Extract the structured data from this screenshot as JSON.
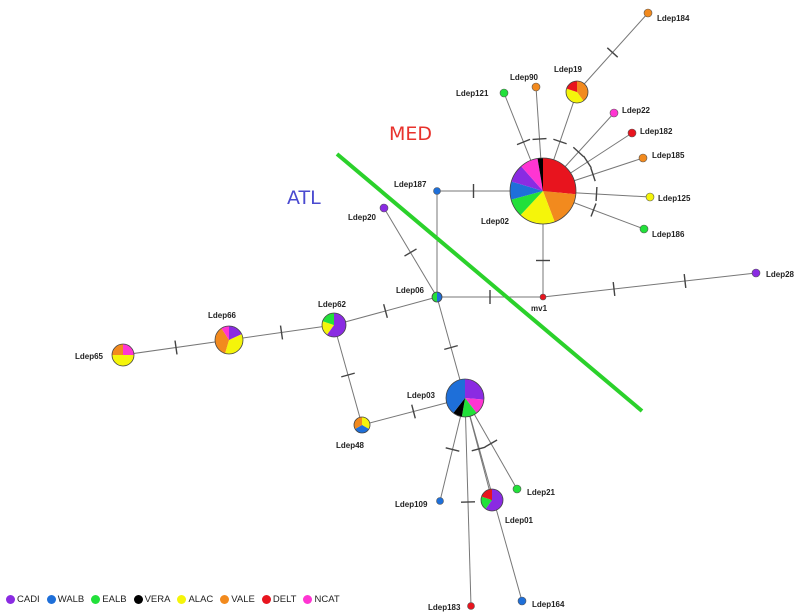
{
  "regions": {
    "med": {
      "label": "MED",
      "color": "#e8322c"
    },
    "atl": {
      "label": "ATL",
      "color": "#4a4ad0"
    }
  },
  "separator_color": "#2bd12b",
  "legend": [
    {
      "label": "CADI",
      "color": "#8a2be2"
    },
    {
      "label": "WALB",
      "color": "#1e6fd9"
    },
    {
      "label": "EALB",
      "color": "#22e03a"
    },
    {
      "label": "VERA",
      "color": "#000000"
    },
    {
      "label": "ALAC",
      "color": "#f5f50a"
    },
    {
      "label": "VALE",
      "color": "#f28a1e"
    },
    {
      "label": "DELT",
      "color": "#e8141e"
    },
    {
      "label": "NCAT",
      "color": "#ff35d2"
    }
  ],
  "haplotypes": [
    {
      "id": "ldep02",
      "label": "Ldep02",
      "composition": {
        "DELT": 3,
        "VALE": 2,
        "ALAC": 2,
        "EALB": 1,
        "WALB": 1,
        "CADI": 1,
        "NCAT": 1,
        "VERA": 0.3
      }
    },
    {
      "id": "ldep03",
      "label": "Ldep03",
      "composition": {
        "CADI": 2,
        "NCAT": 1,
        "EALB": 1,
        "VERA": 0.6,
        "WALB": 3
      }
    },
    {
      "id": "ldep06",
      "label": "Ldep06",
      "composition": {
        "WALB": 1,
        "EALB": 1
      }
    },
    {
      "id": "ldep62",
      "label": "Ldep62",
      "composition": {
        "CADI": 3,
        "ALAC": 1,
        "EALB": 1
      }
    },
    {
      "id": "ldep66",
      "label": "Ldep66",
      "composition": {
        "CADI": 1,
        "ALAC": 2,
        "VALE": 2,
        "NCAT": 0.5
      }
    },
    {
      "id": "ldep65",
      "label": "Ldep65",
      "composition": {
        "NCAT": 1,
        "ALAC": 2,
        "VALE": 1
      }
    },
    {
      "id": "ldep48",
      "label": "Ldep48",
      "composition": {
        "ALAC": 1,
        "WALB": 1,
        "VALE": 1
      }
    },
    {
      "id": "ldep19",
      "label": "Ldep19",
      "composition": {
        "VALE": 2,
        "ALAC": 2,
        "DELT": 1
      }
    },
    {
      "id": "ldep01",
      "label": "Ldep01",
      "composition": {
        "CADI": 3,
        "EALB": 1,
        "DELT": 1
      }
    },
    {
      "id": "ldep184",
      "label": "Ldep184",
      "composition": {
        "VALE": 1
      }
    },
    {
      "id": "ldep90",
      "label": "Ldep90",
      "composition": {
        "VALE": 1
      }
    },
    {
      "id": "ldep121",
      "label": "Ldep121",
      "composition": {
        "EALB": 1
      }
    },
    {
      "id": "ldep22",
      "label": "Ldep22",
      "composition": {
        "NCAT": 1
      }
    },
    {
      "id": "ldep182",
      "label": "Ldep182",
      "composition": {
        "DELT": 1
      }
    },
    {
      "id": "ldep185",
      "label": "Ldep185",
      "composition": {
        "VALE": 1
      }
    },
    {
      "id": "ldep125",
      "label": "Ldep125",
      "composition": {
        "ALAC": 1
      }
    },
    {
      "id": "ldep186",
      "label": "Ldep186",
      "composition": {
        "EALB": 1
      }
    },
    {
      "id": "ldep187",
      "label": "Ldep187",
      "composition": {
        "WALB": 1
      }
    },
    {
      "id": "ldep20",
      "label": "Ldep20",
      "composition": {
        "CADI": 1
      }
    },
    {
      "id": "ldep28",
      "label": "Ldep28",
      "composition": {
        "CADI": 1
      }
    },
    {
      "id": "mv1",
      "label": "mv1",
      "composition": {
        "DELT": 1
      }
    },
    {
      "id": "ldep109",
      "label": "Ldep109",
      "composition": {
        "WALB": 1
      }
    },
    {
      "id": "ldep21",
      "label": "Ldep21",
      "composition": {
        "EALB": 1
      }
    },
    {
      "id": "ldep183",
      "label": "Ldep183",
      "composition": {
        "DELT": 1
      }
    },
    {
      "id": "ldep164",
      "label": "Ldep164",
      "composition": {
        "WALB": 1
      }
    }
  ],
  "links": [
    {
      "from": "ldep02",
      "to": "ldep19",
      "mutations": 1
    },
    {
      "from": "ldep19",
      "to": "ldep184",
      "mutations": 1
    },
    {
      "from": "ldep02",
      "to": "ldep90",
      "mutations": 1
    },
    {
      "from": "ldep02",
      "to": "ldep121",
      "mutations": 1
    },
    {
      "from": "ldep02",
      "to": "ldep22",
      "mutations": 1
    },
    {
      "from": "ldep02",
      "to": "ldep182",
      "mutations": 1
    },
    {
      "from": "ldep02",
      "to": "ldep185",
      "mutations": 1
    },
    {
      "from": "ldep02",
      "to": "ldep125",
      "mutations": 1
    },
    {
      "from": "ldep02",
      "to": "ldep186",
      "mutations": 1
    },
    {
      "from": "ldep02",
      "to": "ldep187",
      "mutations": 1
    },
    {
      "from": "ldep02",
      "to": "mv1",
      "mutations": 1
    },
    {
      "from": "ldep187",
      "to": "ldep06",
      "mutations": 0
    },
    {
      "from": "ldep20",
      "to": "ldep06",
      "mutations": 1
    },
    {
      "from": "ldep06",
      "to": "mv1",
      "mutations": 1
    },
    {
      "from": "mv1",
      "to": "ldep28",
      "mutations": 2
    },
    {
      "from": "ldep06",
      "to": "ldep62",
      "mutations": 1
    },
    {
      "from": "ldep62",
      "to": "ldep66",
      "mutations": 1
    },
    {
      "from": "ldep66",
      "to": "ldep65",
      "mutations": 1
    },
    {
      "from": "ldep62",
      "to": "ldep48",
      "mutations": 1
    },
    {
      "from": "ldep48",
      "to": "ldep03",
      "mutations": 1
    },
    {
      "from": "ldep06",
      "to": "ldep03",
      "mutations": 1
    },
    {
      "from": "ldep03",
      "to": "ldep109",
      "mutations": 1
    },
    {
      "from": "ldep03",
      "to": "ldep01",
      "mutations": 1
    },
    {
      "from": "ldep03",
      "to": "ldep21",
      "mutations": 1
    },
    {
      "from": "ldep03",
      "to": "ldep183",
      "mutations": 1
    },
    {
      "from": "ldep03",
      "to": "ldep164",
      "mutations": 1
    }
  ]
}
